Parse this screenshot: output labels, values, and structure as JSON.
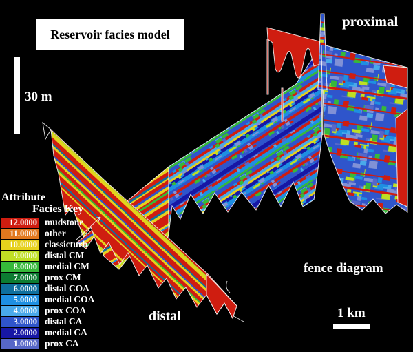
{
  "figure": {
    "title": "Reservoir facies model",
    "labels": {
      "proximal": "proximal",
      "distal": "distal",
      "fence_diagram": "fence diagram"
    },
    "scale_vertical": {
      "label": "30 m"
    },
    "scale_horizontal": {
      "label": "1 km"
    },
    "background_color": "#000000"
  },
  "legend": {
    "attribute_header": "Attribute",
    "key_header": "Facies Key",
    "entries": [
      {
        "value": "12.0000",
        "label": "mudstone",
        "color": "#cf1d10"
      },
      {
        "value": "11.0000",
        "label": "other",
        "color": "#e2781e"
      },
      {
        "value": "10.0000",
        "label": "classicturb",
        "color": "#e6d11d"
      },
      {
        "value": "9.0000",
        "label": "distal CM",
        "color": "#bfdf24"
      },
      {
        "value": "8.0000",
        "label": "medial CM",
        "color": "#36b93a"
      },
      {
        "value": "7.0000",
        "label": "prox CM",
        "color": "#0c7c32"
      },
      {
        "value": "6.0000",
        "label": "distal COA",
        "color": "#0e6f9e"
      },
      {
        "value": "5.0000",
        "label": "medial COA",
        "color": "#1e8fe2"
      },
      {
        "value": "4.0000",
        "label": "prox COA",
        "color": "#49a9ea"
      },
      {
        "value": "3.0000",
        "label": "distal CA",
        "color": "#2f55cb"
      },
      {
        "value": "2.0000",
        "label": "medial CA",
        "color": "#1717a5"
      },
      {
        "value": "1.0000",
        "label": "prox CA",
        "color": "#5767c8"
      }
    ]
  },
  "fence": {
    "slate_color": "#8191d6",
    "outline_color": "#ffffff"
  }
}
